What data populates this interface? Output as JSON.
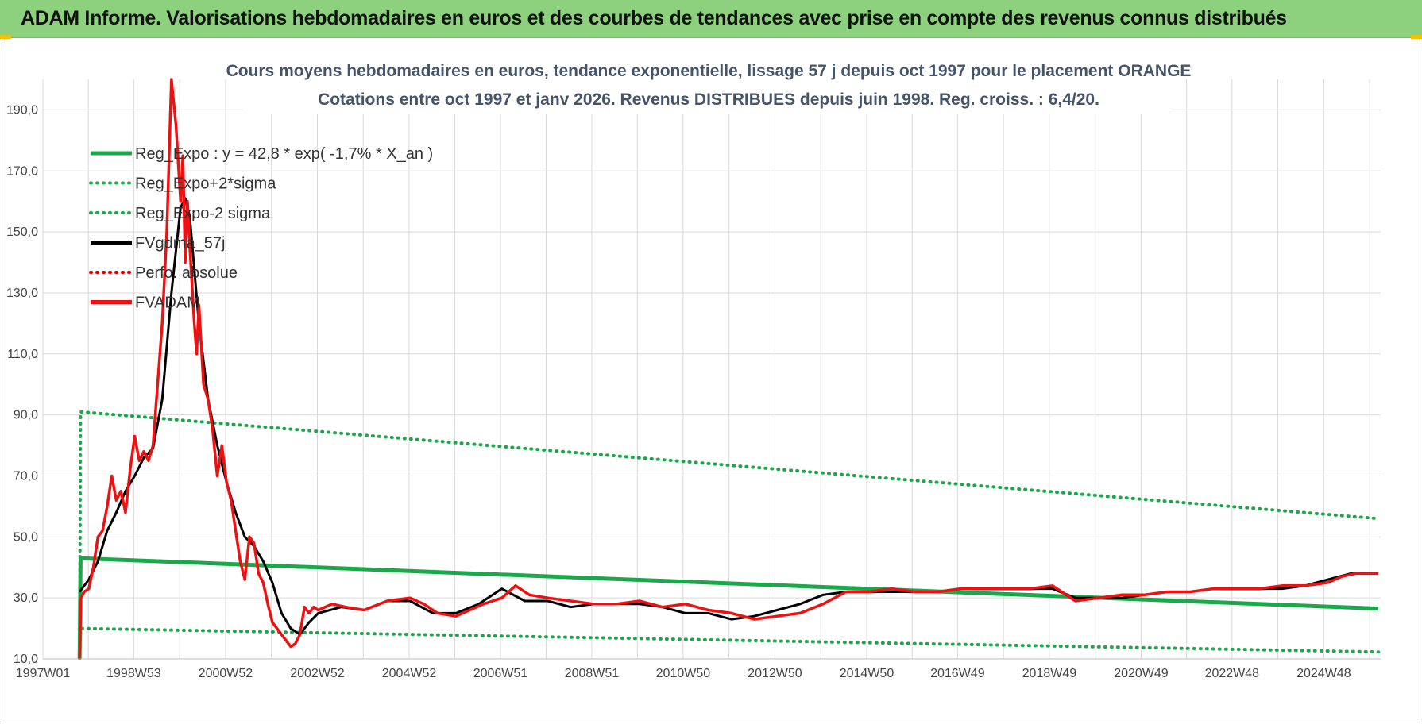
{
  "header": {
    "title": "ADAM Informe. Valorisations hebdomadaires en euros et des courbes de tendances avec prise en compte des revenus connus distribués"
  },
  "colors": {
    "banner": "#8dd17f",
    "trend": "#1aa84a",
    "sigma": "#1aa84a",
    "smooth": "#000000",
    "perf": "#d40000",
    "fvadam": "#ee1111",
    "grid": "#d9d9d9"
  },
  "chart_data": {
    "type": "line",
    "title": "Cours moyens hebdomadaires en euros, tendance exponentielle, lissage 57 j depuis oct 1997 pour le placement ORANGE",
    "subtitle": "Cotations entre oct 1997 et janv 2026. Revenus DISTRIBUES depuis juin 1998. Reg. croiss. : 6,4/20.",
    "xlabel": "",
    "ylabel": "",
    "xlim": [
      1997.0,
      2026.15
    ],
    "ylim": [
      10,
      200
    ],
    "y_ticks": [
      10,
      30,
      50,
      70,
      90,
      110,
      130,
      150,
      170,
      190
    ],
    "y_tick_labels": [
      "10,0",
      "30,0",
      "50,0",
      "70,0",
      "90,0",
      "110,0",
      "130,0",
      "150,0",
      "170,0",
      "190,0"
    ],
    "x_ticks": [
      {
        "x": 1997.0,
        "label": "1997W01"
      },
      {
        "x": 1998.98,
        "label": "1998W53"
      },
      {
        "x": 2000.98,
        "label": "2000W52"
      },
      {
        "x": 2002.98,
        "label": "2002W52"
      },
      {
        "x": 2004.98,
        "label": "2004W52"
      },
      {
        "x": 2006.97,
        "label": "2006W51"
      },
      {
        "x": 2008.96,
        "label": "2008W51"
      },
      {
        "x": 2010.95,
        "label": "2010W50"
      },
      {
        "x": 2012.95,
        "label": "2012W50"
      },
      {
        "x": 2014.95,
        "label": "2014W50"
      },
      {
        "x": 2016.93,
        "label": "2016W49"
      },
      {
        "x": 2018.93,
        "label": "2018W49"
      },
      {
        "x": 2020.93,
        "label": "2020W49"
      },
      {
        "x": 2022.91,
        "label": "2022W48"
      },
      {
        "x": 2024.91,
        "label": "2024W48"
      }
    ],
    "legend": [
      {
        "name": "Reg_Expo : y = 42,8 * exp( -1,7% *  X_an )",
        "style": "solid",
        "color": "#1aa84a"
      },
      {
        "name": "Reg_Expo+2*sigma",
        "style": "dotted",
        "color": "#1aa84a"
      },
      {
        "name": "Reg_Expo-2 sigma",
        "style": "dotted",
        "color": "#1aa84a"
      },
      {
        "name": "FVgdma_57j",
        "style": "solid",
        "color": "#000000"
      },
      {
        "name": "Perfo. absolue",
        "style": "dotted",
        "color": "#d40000"
      },
      {
        "name": "FVADAM",
        "style": "solid",
        "color": "#ee1111"
      }
    ],
    "series": [
      {
        "name": "Reg_Expo",
        "x": [
          1997.8,
          1997.82,
          2026.1
        ],
        "y": [
          10,
          43.0,
          26.5
        ]
      },
      {
        "name": "Reg_Expo+2*sigma",
        "x": [
          1997.8,
          1997.82,
          2026.1
        ],
        "y": [
          10,
          91.0,
          56.0
        ]
      },
      {
        "name": "Reg_Expo-2 sigma",
        "x": [
          1997.8,
          1997.82,
          2026.1
        ],
        "y": [
          10,
          20.0,
          12.3
        ]
      },
      {
        "name": "FVgdma_57j",
        "x": [
          1997.8,
          1998.0,
          1998.2,
          1998.4,
          1998.6,
          1998.8,
          1999.0,
          1999.2,
          1999.4,
          1999.6,
          1999.8,
          2000.0,
          2000.1,
          2000.2,
          2000.4,
          2000.6,
          2000.8,
          2001.0,
          2001.2,
          2001.4,
          2001.6,
          2001.8,
          2002.0,
          2002.2,
          2002.4,
          2002.6,
          2002.8,
          2003.0,
          2003.5,
          2004.0,
          2004.5,
          2005.0,
          2005.5,
          2006.0,
          2006.5,
          2007.0,
          2007.5,
          2008.0,
          2008.5,
          2009.0,
          2009.5,
          2010.0,
          2010.5,
          2011.0,
          2011.5,
          2012.0,
          2012.5,
          2013.0,
          2013.5,
          2014.0,
          2014.5,
          2015.0,
          2015.5,
          2016.0,
          2016.5,
          2017.0,
          2017.5,
          2018.0,
          2018.5,
          2019.0,
          2019.5,
          2020.0,
          2020.5,
          2021.0,
          2021.5,
          2022.0,
          2022.5,
          2023.0,
          2023.5,
          2024.0,
          2024.5,
          2025.0,
          2025.5,
          2026.1
        ],
        "y": [
          32,
          36,
          42,
          52,
          58,
          65,
          70,
          76,
          79,
          95,
          130,
          158,
          161,
          155,
          120,
          95,
          80,
          68,
          58,
          50,
          47,
          42,
          35,
          25,
          20,
          18,
          22,
          25,
          27,
          26,
          29,
          29,
          25,
          25,
          28,
          33,
          29,
          29,
          27,
          28,
          28,
          28,
          27,
          25,
          25,
          23,
          24,
          26,
          28,
          31,
          32,
          32,
          32,
          32,
          32,
          33,
          33,
          33,
          33,
          33,
          30,
          30,
          30,
          31,
          32,
          32,
          33,
          33,
          33,
          33,
          34,
          36,
          38,
          38
        ]
      },
      {
        "name": "FVADAM",
        "x": [
          1997.8,
          1997.83,
          1997.9,
          1998.0,
          1998.1,
          1998.2,
          1998.3,
          1998.4,
          1998.5,
          1998.6,
          1998.7,
          1998.8,
          1998.9,
          1999.0,
          1999.1,
          1999.2,
          1999.3,
          1999.4,
          1999.5,
          1999.6,
          1999.7,
          1999.8,
          1999.9,
          2000.0,
          2000.05,
          2000.1,
          2000.15,
          2000.2,
          2000.3,
          2000.35,
          2000.4,
          2000.5,
          2000.6,
          2000.7,
          2000.8,
          2000.9,
          2001.0,
          2001.1,
          2001.2,
          2001.3,
          2001.4,
          2001.5,
          2001.6,
          2001.7,
          2001.8,
          2001.9,
          2002.0,
          2002.2,
          2002.4,
          2002.5,
          2002.6,
          2002.7,
          2002.8,
          2002.9,
          2003.0,
          2003.3,
          2003.6,
          2004.0,
          2004.5,
          2005.0,
          2005.3,
          2005.6,
          2006.0,
          2006.3,
          2006.6,
          2007.0,
          2007.3,
          2007.6,
          2008.0,
          2008.5,
          2009.0,
          2009.5,
          2010.0,
          2010.5,
          2011.0,
          2011.5,
          2012.0,
          2012.5,
          2013.0,
          2013.5,
          2014.0,
          2014.5,
          2015.0,
          2015.5,
          2016.0,
          2016.5,
          2017.0,
          2017.5,
          2018.0,
          2018.5,
          2019.0,
          2019.5,
          2020.0,
          2020.5,
          2021.0,
          2021.5,
          2022.0,
          2022.5,
          2023.0,
          2023.5,
          2024.0,
          2024.5,
          2025.0,
          2025.3,
          2025.6,
          2026.1
        ],
        "y": [
          10,
          30,
          32,
          33,
          40,
          50,
          52,
          60,
          70,
          62,
          65,
          58,
          72,
          83,
          75,
          78,
          75,
          80,
          100,
          120,
          150,
          200,
          185,
          160,
          175,
          140,
          160,
          145,
          120,
          110,
          126,
          100,
          95,
          85,
          70,
          80,
          68,
          62,
          52,
          42,
          36,
          50,
          48,
          38,
          35,
          28,
          22,
          18,
          14,
          15,
          18,
          27,
          25,
          27,
          26,
          28,
          27,
          26,
          29,
          30,
          28,
          25,
          24,
          26,
          28,
          30,
          34,
          31,
          30,
          29,
          28,
          28,
          29,
          27,
          28,
          26,
          25,
          23,
          24,
          25,
          28,
          32,
          32,
          33,
          32,
          32,
          33,
          33,
          33,
          33,
          34,
          29,
          30,
          31,
          31,
          32,
          32,
          33,
          33,
          33,
          34,
          34,
          35,
          37,
          38,
          38
        ]
      }
    ]
  }
}
